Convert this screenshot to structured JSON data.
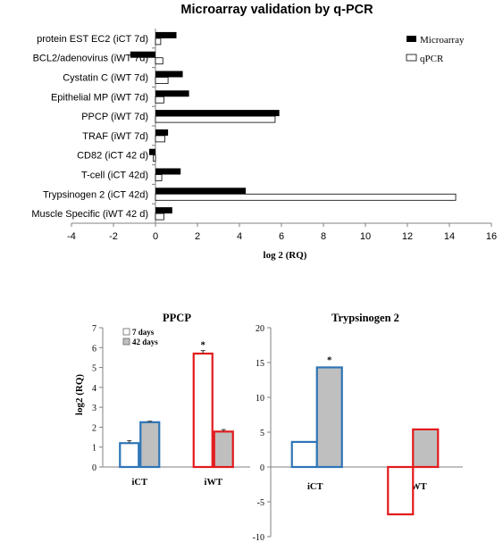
{
  "colors": {
    "microarray": "#000000",
    "qpcr": "#ffffff",
    "days7_ict": "#2e75b6",
    "days7_iwt": "#e31a1c",
    "days42_fill": "#bfbfbf",
    "axis": "#808080"
  },
  "chart_data": [
    {
      "type": "bar",
      "orientation": "horizontal",
      "title": "Microarray validation by q-PCR",
      "xlabel": "log 2 (RQ)",
      "ylabel": "",
      "xlim": [
        -4,
        16
      ],
      "xticks": [
        -4,
        -2,
        0,
        2,
        4,
        6,
        8,
        10,
        12,
        14,
        16
      ],
      "grid": false,
      "legend": "top-right",
      "categories": [
        "protein EST EC2 (iCT 7d)",
        "BCL2/adenovirus (iWT 7d)",
        "Cystatin C (iWT 7d)",
        "Epithelial MP (iWT 7d)",
        "PPCP (iWT 7d)",
        "TRAF (iWT 7d)",
        "CD82 (iCT 42 d)",
        "T-cell (iCT 42d)",
        "Trypsinogen 2 (iCT 42d)",
        "Muscle Specific (iWT 42 d)"
      ],
      "series": [
        {
          "name": "Microarray",
          "values": [
            1.0,
            -1.2,
            1.3,
            1.6,
            5.9,
            0.6,
            -0.3,
            1.2,
            4.3,
            0.8
          ]
        },
        {
          "name": "qPCR",
          "values": [
            0.25,
            0.35,
            0.6,
            0.4,
            5.7,
            0.45,
            -0.1,
            0.3,
            14.3,
            0.4
          ]
        }
      ]
    },
    {
      "type": "bar",
      "title": "PPCP",
      "xlabel": "",
      "ylabel": "log2 (RQ)",
      "ylim": [
        0,
        7
      ],
      "yticks": [
        0,
        1,
        2,
        3,
        4,
        5,
        6,
        7
      ],
      "legend": "top-left",
      "categories": [
        "iCT",
        "iWT"
      ],
      "series": [
        {
          "name": "7 days",
          "values": [
            1.2,
            5.7
          ],
          "errors": [
            0.12,
            0.15
          ]
        },
        {
          "name": "42 days",
          "values": [
            2.25,
            1.78
          ],
          "errors": [
            0.05,
            0.1
          ]
        }
      ],
      "annotations": [
        {
          "category": "iWT",
          "series": "7 days",
          "text": "*"
        }
      ]
    },
    {
      "type": "bar",
      "title": "Trypsinogen 2",
      "xlabel": "",
      "ylabel": "",
      "ylim": [
        -10,
        20
      ],
      "yticks": [
        -10,
        -5,
        0,
        5,
        10,
        15,
        20
      ],
      "categories": [
        "iCT",
        "i WT"
      ],
      "series": [
        {
          "values": [
            3.6,
            -6.8
          ]
        },
        {
          "values": [
            14.3,
            5.4
          ]
        }
      ],
      "annotations": [
        {
          "category": "iCT",
          "series": 1,
          "text": "*"
        }
      ]
    }
  ]
}
